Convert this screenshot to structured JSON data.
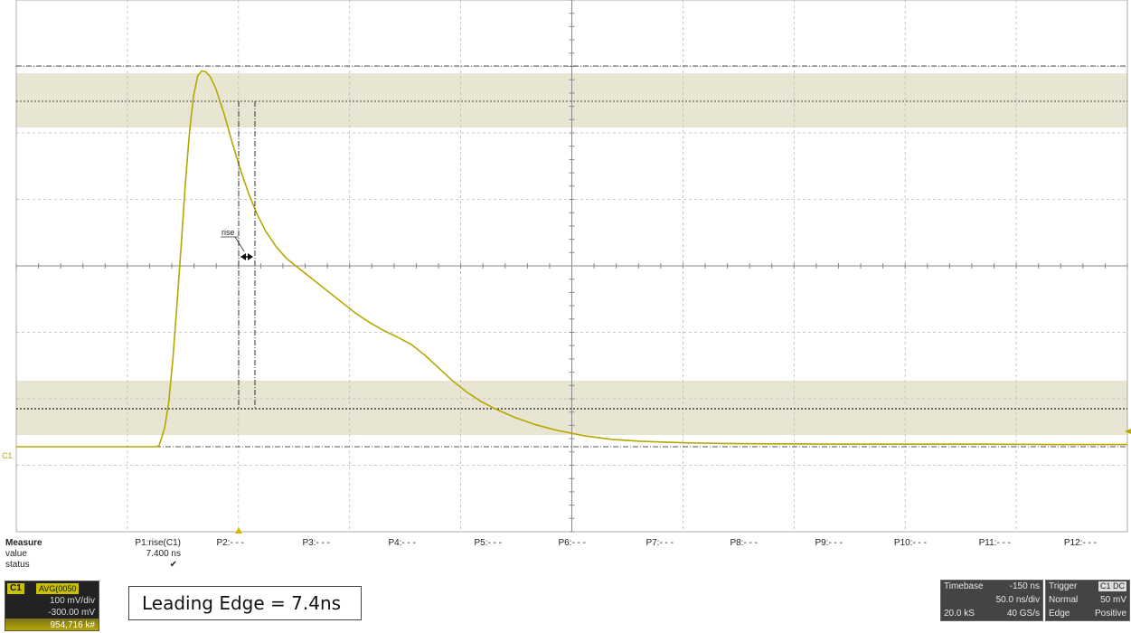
{
  "scope": {
    "channel_marker": "C1",
    "measure_label": "rise",
    "colors": {
      "trace": "#b5a800",
      "band": "#e8e5d2",
      "grid": "#bbbbbb",
      "axis": "#888888"
    },
    "trace_data": {
      "type": "line",
      "x_units": "ns",
      "y_units": "mV",
      "points": [
        [
          -250,
          -300
        ],
        [
          -150,
          -300
        ],
        [
          -147,
          -298
        ],
        [
          -143,
          -250
        ],
        [
          -140,
          -180
        ],
        [
          -137,
          -60
        ],
        [
          -134,
          90
        ],
        [
          -131,
          250
        ],
        [
          -128,
          420
        ],
        [
          -125,
          560
        ],
        [
          -122,
          660
        ],
        [
          -119,
          715
        ],
        [
          -116,
          728
        ],
        [
          -113,
          725
        ],
        [
          -110,
          712
        ],
        [
          -106,
          680
        ],
        [
          -100,
          610
        ],
        [
          -94,
          530
        ],
        [
          -88,
          455
        ],
        [
          -82,
          390
        ],
        [
          -76,
          335
        ],
        [
          -70,
          290
        ],
        [
          -63,
          250
        ],
        [
          -55,
          215
        ],
        [
          -45,
          185
        ],
        [
          -35,
          155
        ],
        [
          -25,
          125
        ],
        [
          -15,
          95
        ],
        [
          -5,
          65
        ],
        [
          5,
          40
        ],
        [
          15,
          18
        ],
        [
          25,
          0
        ],
        [
          35,
          -20
        ],
        [
          45,
          -50
        ],
        [
          55,
          -85
        ],
        [
          65,
          -120
        ],
        [
          75,
          -150
        ],
        [
          85,
          -175
        ],
        [
          95,
          -195
        ],
        [
          110,
          -220
        ],
        [
          125,
          -240
        ],
        [
          140,
          -255
        ],
        [
          160,
          -270
        ],
        [
          180,
          -280
        ],
        [
          200,
          -285
        ],
        [
          230,
          -289
        ],
        [
          260,
          -291
        ],
        [
          300,
          -292
        ],
        [
          350,
          -293
        ],
        [
          400,
          -293
        ],
        [
          450,
          -293
        ],
        [
          500,
          -294
        ],
        [
          552,
          -294
        ]
      ]
    }
  },
  "measure": {
    "labels": {
      "measure": "Measure",
      "value": "value",
      "status": "status"
    },
    "params": [
      {
        "name": "P1:rise(C1)",
        "value": "7.400 ns",
        "status": "✔"
      },
      {
        "name": "P2:- - -",
        "value": "",
        "status": ""
      },
      {
        "name": "P3:- - -",
        "value": "",
        "status": ""
      },
      {
        "name": "P4:- - -",
        "value": "",
        "status": ""
      },
      {
        "name": "P5:- - -",
        "value": "",
        "status": ""
      },
      {
        "name": "P6:- - -",
        "value": "",
        "status": ""
      },
      {
        "name": "P7:- - -",
        "value": "",
        "status": ""
      },
      {
        "name": "P8:- - -",
        "value": "",
        "status": ""
      },
      {
        "name": "P9:- - -",
        "value": "",
        "status": ""
      },
      {
        "name": "P10:- - -",
        "value": "",
        "status": ""
      },
      {
        "name": "P11:- - -",
        "value": "",
        "status": ""
      },
      {
        "name": "P12:- - -",
        "value": "",
        "status": ""
      }
    ]
  },
  "channel": {
    "name": "C1",
    "avg": "AVG(0050",
    "volts_per_div": "100 mV/div",
    "offset": "-300.00 mV",
    "sweeps": "954,716 k#"
  },
  "annotation": {
    "text": "Leading Edge = 7.4ns"
  },
  "timebase": {
    "label": "Timebase",
    "delay": "-150 ns",
    "time_per_div": "50.0 ns/div",
    "samples": "20.0 kS",
    "sample_rate": "40 GS/s"
  },
  "trigger": {
    "label": "Trigger",
    "source": "C1 DC",
    "mode": "Normal",
    "level": "50 mV",
    "type": "Edge",
    "slope": "Positive"
  }
}
